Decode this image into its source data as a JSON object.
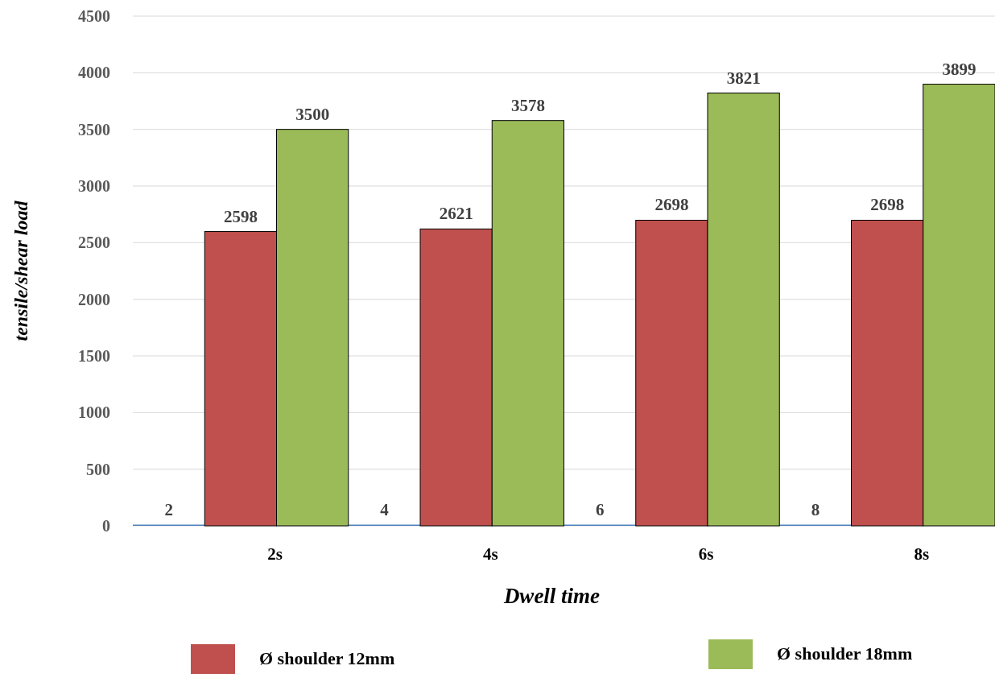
{
  "chart_data": {
    "type": "bar",
    "xlabel": "Dwell time",
    "ylabel": "tensile/shear load",
    "categories": [
      "2s",
      "4s",
      "6s",
      "8s"
    ],
    "series": [
      {
        "color": "#4f81bd",
        "values": [
          2,
          4,
          6,
          8
        ]
      },
      {
        "name": "Ø shoulder 12mm",
        "color": "#c0504d",
        "values": [
          2598,
          2621,
          2698,
          2698
        ]
      },
      {
        "name": "Ø shoulder 18mm",
        "color": "#9bbb59",
        "values": [
          3500,
          3578,
          3821,
          3899
        ]
      }
    ],
    "ylim": [
      0,
      4500
    ],
    "yticks": [
      0,
      500,
      1000,
      1500,
      2000,
      2500,
      3000,
      3500,
      4000,
      4500
    ],
    "grid": "y",
    "legend": "bottom",
    "data_labels": true
  }
}
